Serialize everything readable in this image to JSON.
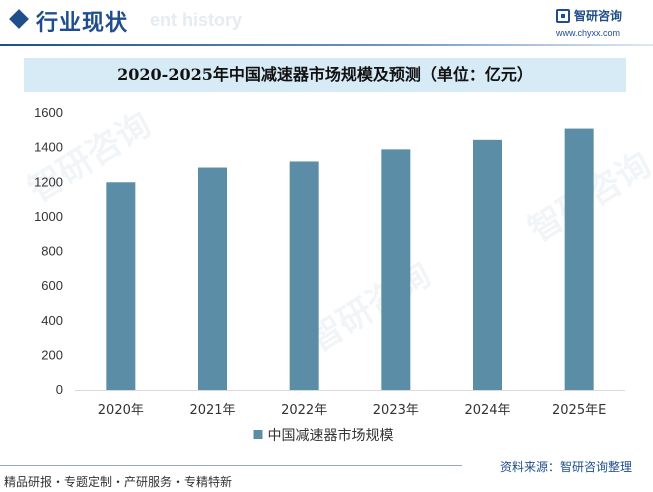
{
  "header": {
    "title": "行业现状",
    "ghost_text": "ent history"
  },
  "logo": {
    "name": "智研咨询",
    "url": "www.chyxx.com"
  },
  "footer": {
    "left": "精品研报・专题定制・产研服务・专精特新",
    "source": "资料来源：智研咨询整理"
  },
  "watermark": "智研咨询",
  "colors": {
    "bar": "#5b8da6",
    "brand": "#1f4e8c",
    "title_band": "#d7ebf7"
  },
  "chart_data": {
    "type": "bar",
    "title": "2020-2025年中国减速器市场规模及预测（单位：亿元）",
    "categories": [
      "2020年",
      "2021年",
      "2022年",
      "2023年",
      "2024年",
      "2025年E"
    ],
    "series": [
      {
        "name": "中国减速器市场规模",
        "values": [
          1200,
          1285,
          1320,
          1390,
          1445,
          1510
        ]
      }
    ],
    "ylim": [
      0,
      1600
    ],
    "yticks": [
      0,
      200,
      400,
      600,
      800,
      1000,
      1200,
      1400,
      1600
    ],
    "legend_position": "bottom",
    "grid": false
  }
}
